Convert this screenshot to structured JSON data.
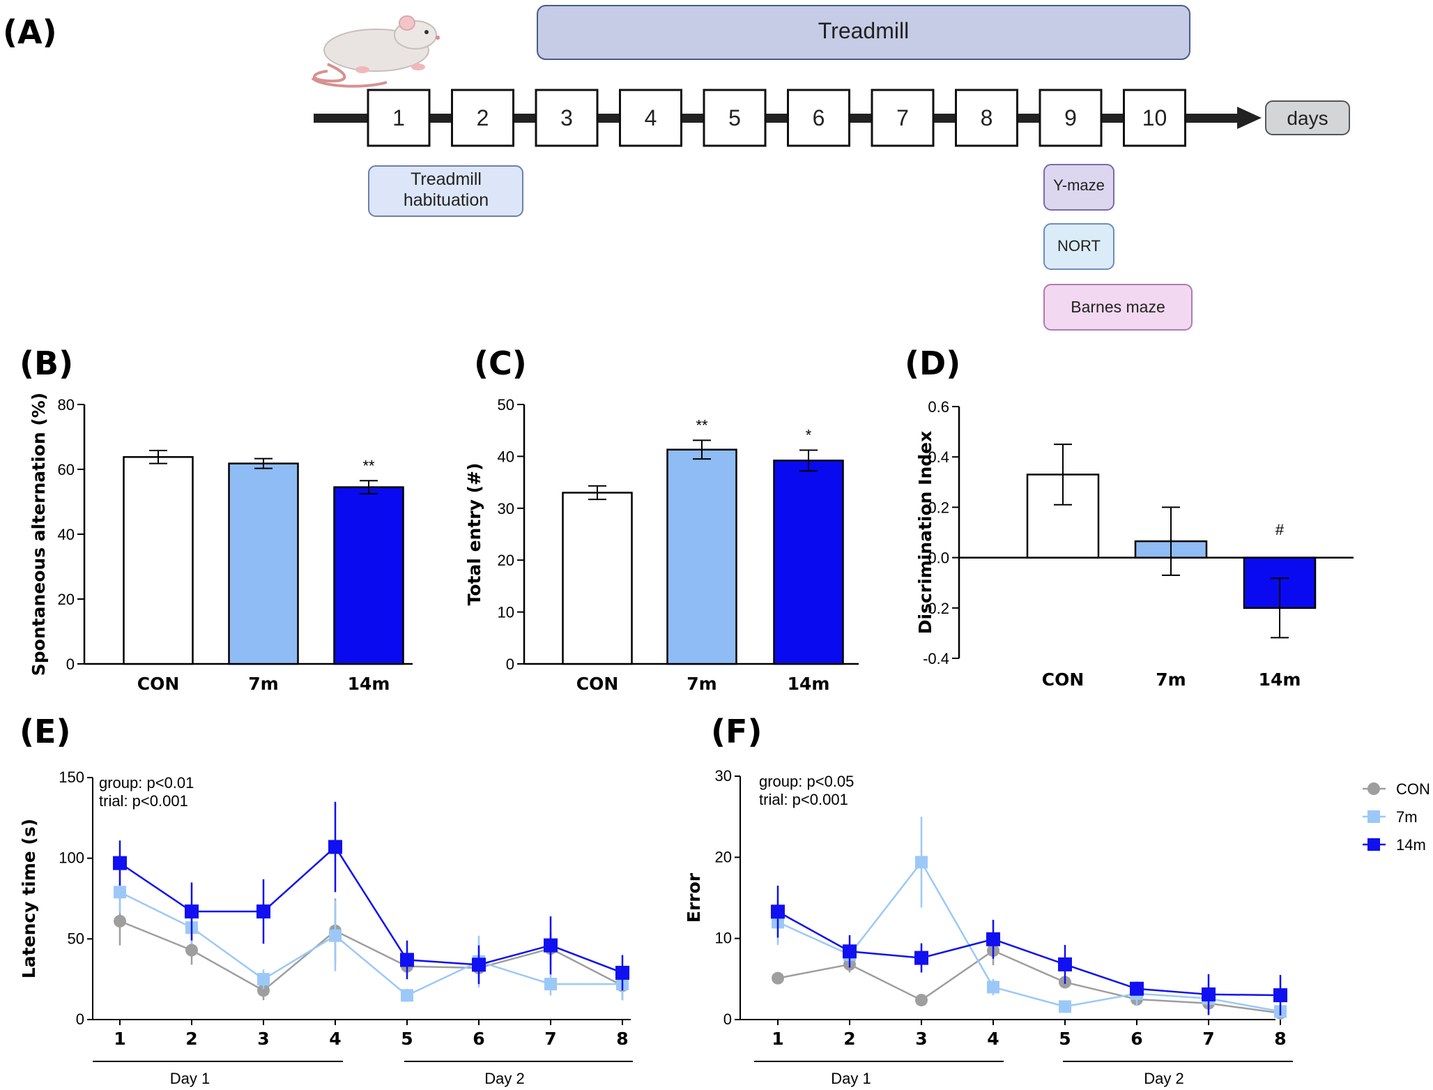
{
  "colors": {
    "con": "#ffffff",
    "m7": "#8fbcf5",
    "m14": "#0a0af0",
    "con_line": "#9e9e9e",
    "m7_line": "#9cc8f8",
    "m14_line": "#1010f0",
    "treadmill_box": "#c6cce5",
    "habituation_box": "#dde6f8",
    "ymaze_box": "#dcd6ef",
    "nort_box": "#dcebf8",
    "barnes_box": "#f2d8f1",
    "days_box": "#d3d5d6"
  },
  "panel_a": {
    "label": "(A)",
    "treadmill": "Treadmill",
    "days": [
      "1",
      "2",
      "3",
      "4",
      "5",
      "6",
      "7",
      "8",
      "9",
      "10"
    ],
    "days_label": "days",
    "habituation_line1": "Treadmill",
    "habituation_line2": "habituation",
    "ymaze": "Y-maze",
    "nort": "NORT",
    "barnes": "Barnes maze",
    "mouse_icon": "mouse-icon"
  },
  "chart_data": [
    {
      "id": "B",
      "label": "(B)",
      "type": "bar",
      "categories": [
        "CON",
        "7m",
        "14m"
      ],
      "values": [
        63.8,
        61.8,
        54.5
      ],
      "errors": [
        2.0,
        1.5,
        2.0
      ],
      "significance": [
        "",
        "",
        "**"
      ],
      "ylabel": "Spontaneous alternation (%)",
      "ylim": [
        0,
        80
      ],
      "yticks": [
        0,
        20,
        40,
        60,
        80
      ]
    },
    {
      "id": "C",
      "label": "(C)",
      "type": "bar",
      "categories": [
        "CON",
        "7m",
        "14m"
      ],
      "values": [
        33.0,
        41.3,
        39.2
      ],
      "errors": [
        1.3,
        1.8,
        2.0
      ],
      "significance": [
        "",
        "**",
        "*"
      ],
      "ylabel": "Total entry (#)",
      "ylim": [
        0,
        50
      ],
      "yticks": [
        0,
        10,
        20,
        30,
        40,
        50
      ]
    },
    {
      "id": "D",
      "label": "(D)",
      "type": "bar",
      "categories": [
        "CON",
        "7m",
        "14m"
      ],
      "values": [
        0.33,
        0.065,
        -0.2
      ],
      "errors": [
        0.12,
        0.135,
        0.118
      ],
      "significance": [
        "",
        "",
        "#"
      ],
      "ylabel": "Discrimination Index",
      "ylim": [
        -0.4,
        0.6
      ],
      "yticks": [
        "-0.4",
        "-0.2",
        "0.0",
        "0.2",
        "0.4",
        "0.6"
      ]
    },
    {
      "id": "E",
      "label": "(E)",
      "type": "line",
      "x": [
        1,
        2,
        3,
        4,
        5,
        6,
        7,
        8
      ],
      "series": [
        {
          "name": "CON",
          "values": [
            61,
            43,
            18,
            55,
            33,
            32,
            44,
            21
          ],
          "errors": [
            15,
            9,
            6,
            20,
            6,
            6,
            10,
            9
          ]
        },
        {
          "name": "7m",
          "values": [
            79,
            57,
            25,
            52,
            15,
            36,
            22,
            22
          ],
          "errors": [
            13,
            10,
            6,
            22,
            4,
            16,
            7,
            10
          ]
        },
        {
          "name": "14m",
          "values": [
            97,
            67,
            67,
            107,
            37,
            34,
            46,
            29
          ],
          "errors": [
            14,
            18,
            20,
            28,
            12,
            12,
            18,
            11
          ]
        }
      ],
      "annotations": [
        "group: p<0.01",
        "trial: p<0.001"
      ],
      "groups": [
        "Day 1",
        "Day 2"
      ],
      "ylabel": "Latency time (s)",
      "ylim": [
        0,
        150
      ],
      "yticks": [
        0,
        50,
        100,
        150
      ]
    },
    {
      "id": "F",
      "label": "(F)",
      "type": "line",
      "x": [
        1,
        2,
        3,
        4,
        5,
        6,
        7,
        8
      ],
      "series": [
        {
          "name": "CON",
          "values": [
            5.1,
            6.8,
            2.4,
            8.5,
            4.6,
            2.5,
            2.0,
            0.8
          ],
          "errors": [
            0.6,
            1.0,
            0.6,
            1.8,
            0.6,
            0.8,
            1.5,
            0.5
          ]
        },
        {
          "name": "7m",
          "values": [
            12.0,
            8.0,
            19.4,
            4.0,
            1.6,
            3.2,
            2.6,
            1.0
          ],
          "errors": [
            2.8,
            1.5,
            5.6,
            1.0,
            0.5,
            1.5,
            1.0,
            0.5
          ]
        },
        {
          "name": "14m",
          "values": [
            13.3,
            8.4,
            7.6,
            9.9,
            6.8,
            3.8,
            3.1,
            3.0
          ],
          "errors": [
            3.2,
            2.0,
            1.8,
            2.4,
            2.4,
            0.8,
            2.5,
            2.5
          ]
        }
      ],
      "annotations": [
        "group: p<0.05",
        "trial: p<0.001"
      ],
      "groups": [
        "Day 1",
        "Day 2"
      ],
      "ylabel": "Error",
      "ylim": [
        0,
        30
      ],
      "yticks": [
        0,
        10,
        20,
        30
      ]
    }
  ],
  "legend": [
    "CON",
    "7m",
    "14m"
  ]
}
